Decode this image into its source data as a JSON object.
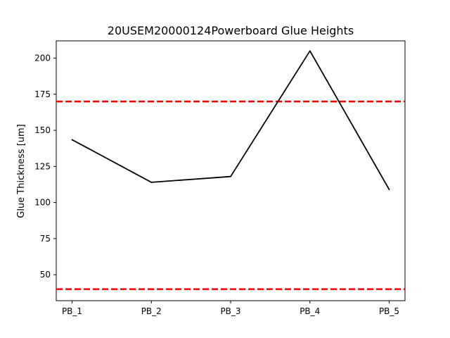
{
  "chart_data": {
    "type": "line",
    "title": "20USEM20000124Powerboard Glue Heights",
    "xlabel": "",
    "ylabel": "Glue Thickness [um]",
    "categories": [
      "PB_1",
      "PB_2",
      "PB_3",
      "PB_4",
      "PB_5"
    ],
    "series": [
      {
        "values": [
          143.5,
          114,
          118,
          205,
          109
        ],
        "color": "#000000"
      }
    ],
    "reference_lines": [
      {
        "y": 170,
        "color": "#ff0000",
        "style": "dashed"
      },
      {
        "y": 40,
        "color": "#ff0000",
        "style": "dashed"
      }
    ],
    "ylim": [
      32,
      212
    ],
    "yticks": [
      50,
      75,
      100,
      125,
      150,
      175,
      200
    ],
    "grid": false
  }
}
